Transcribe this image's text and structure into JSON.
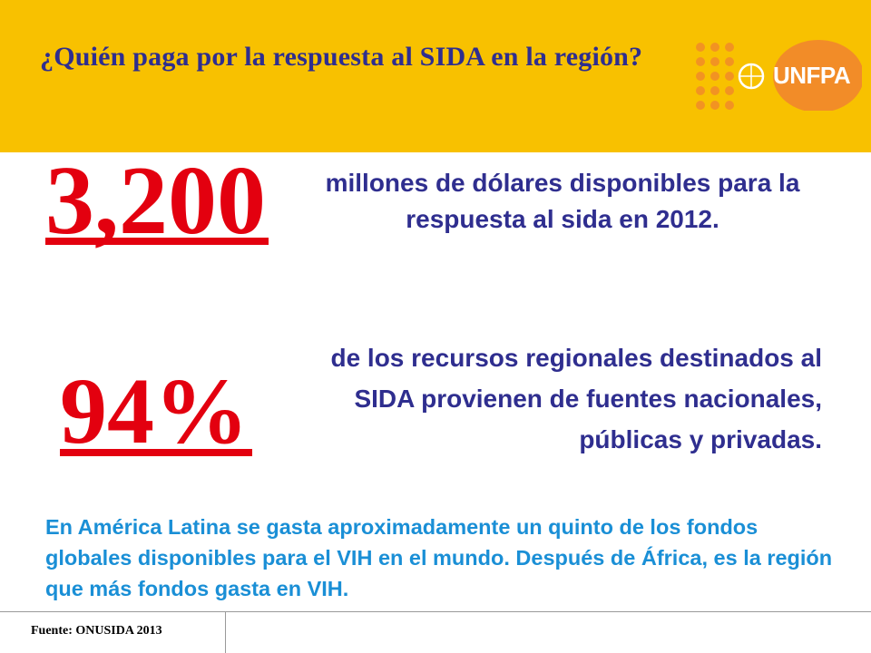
{
  "header": {
    "title": "¿Quién paga por la respuesta al SIDA en la región?",
    "logo_text": "UNFPA"
  },
  "stat1": {
    "value": "3,200",
    "description": "millones de dólares disponibles para la respuesta al sida en 2012."
  },
  "stat2": {
    "value": "94%",
    "description": "de los recursos regionales destinados al SIDA provienen de fuentes nacionales, públicas y privadas."
  },
  "note": "En América Latina se gasta aproximadamente un quinto de los fondos globales disponibles para el VIH en el mundo. Después de África, es la región que más fondos gasta en VIH.",
  "footer": {
    "source": "Fuente: ONUSIDA 2013"
  },
  "colors": {
    "header_bg": "#F8C100",
    "title": "#2F2E8F",
    "highlight": "#E3000F",
    "note": "#1A8FD6",
    "logo_orange": "#F28C28"
  }
}
